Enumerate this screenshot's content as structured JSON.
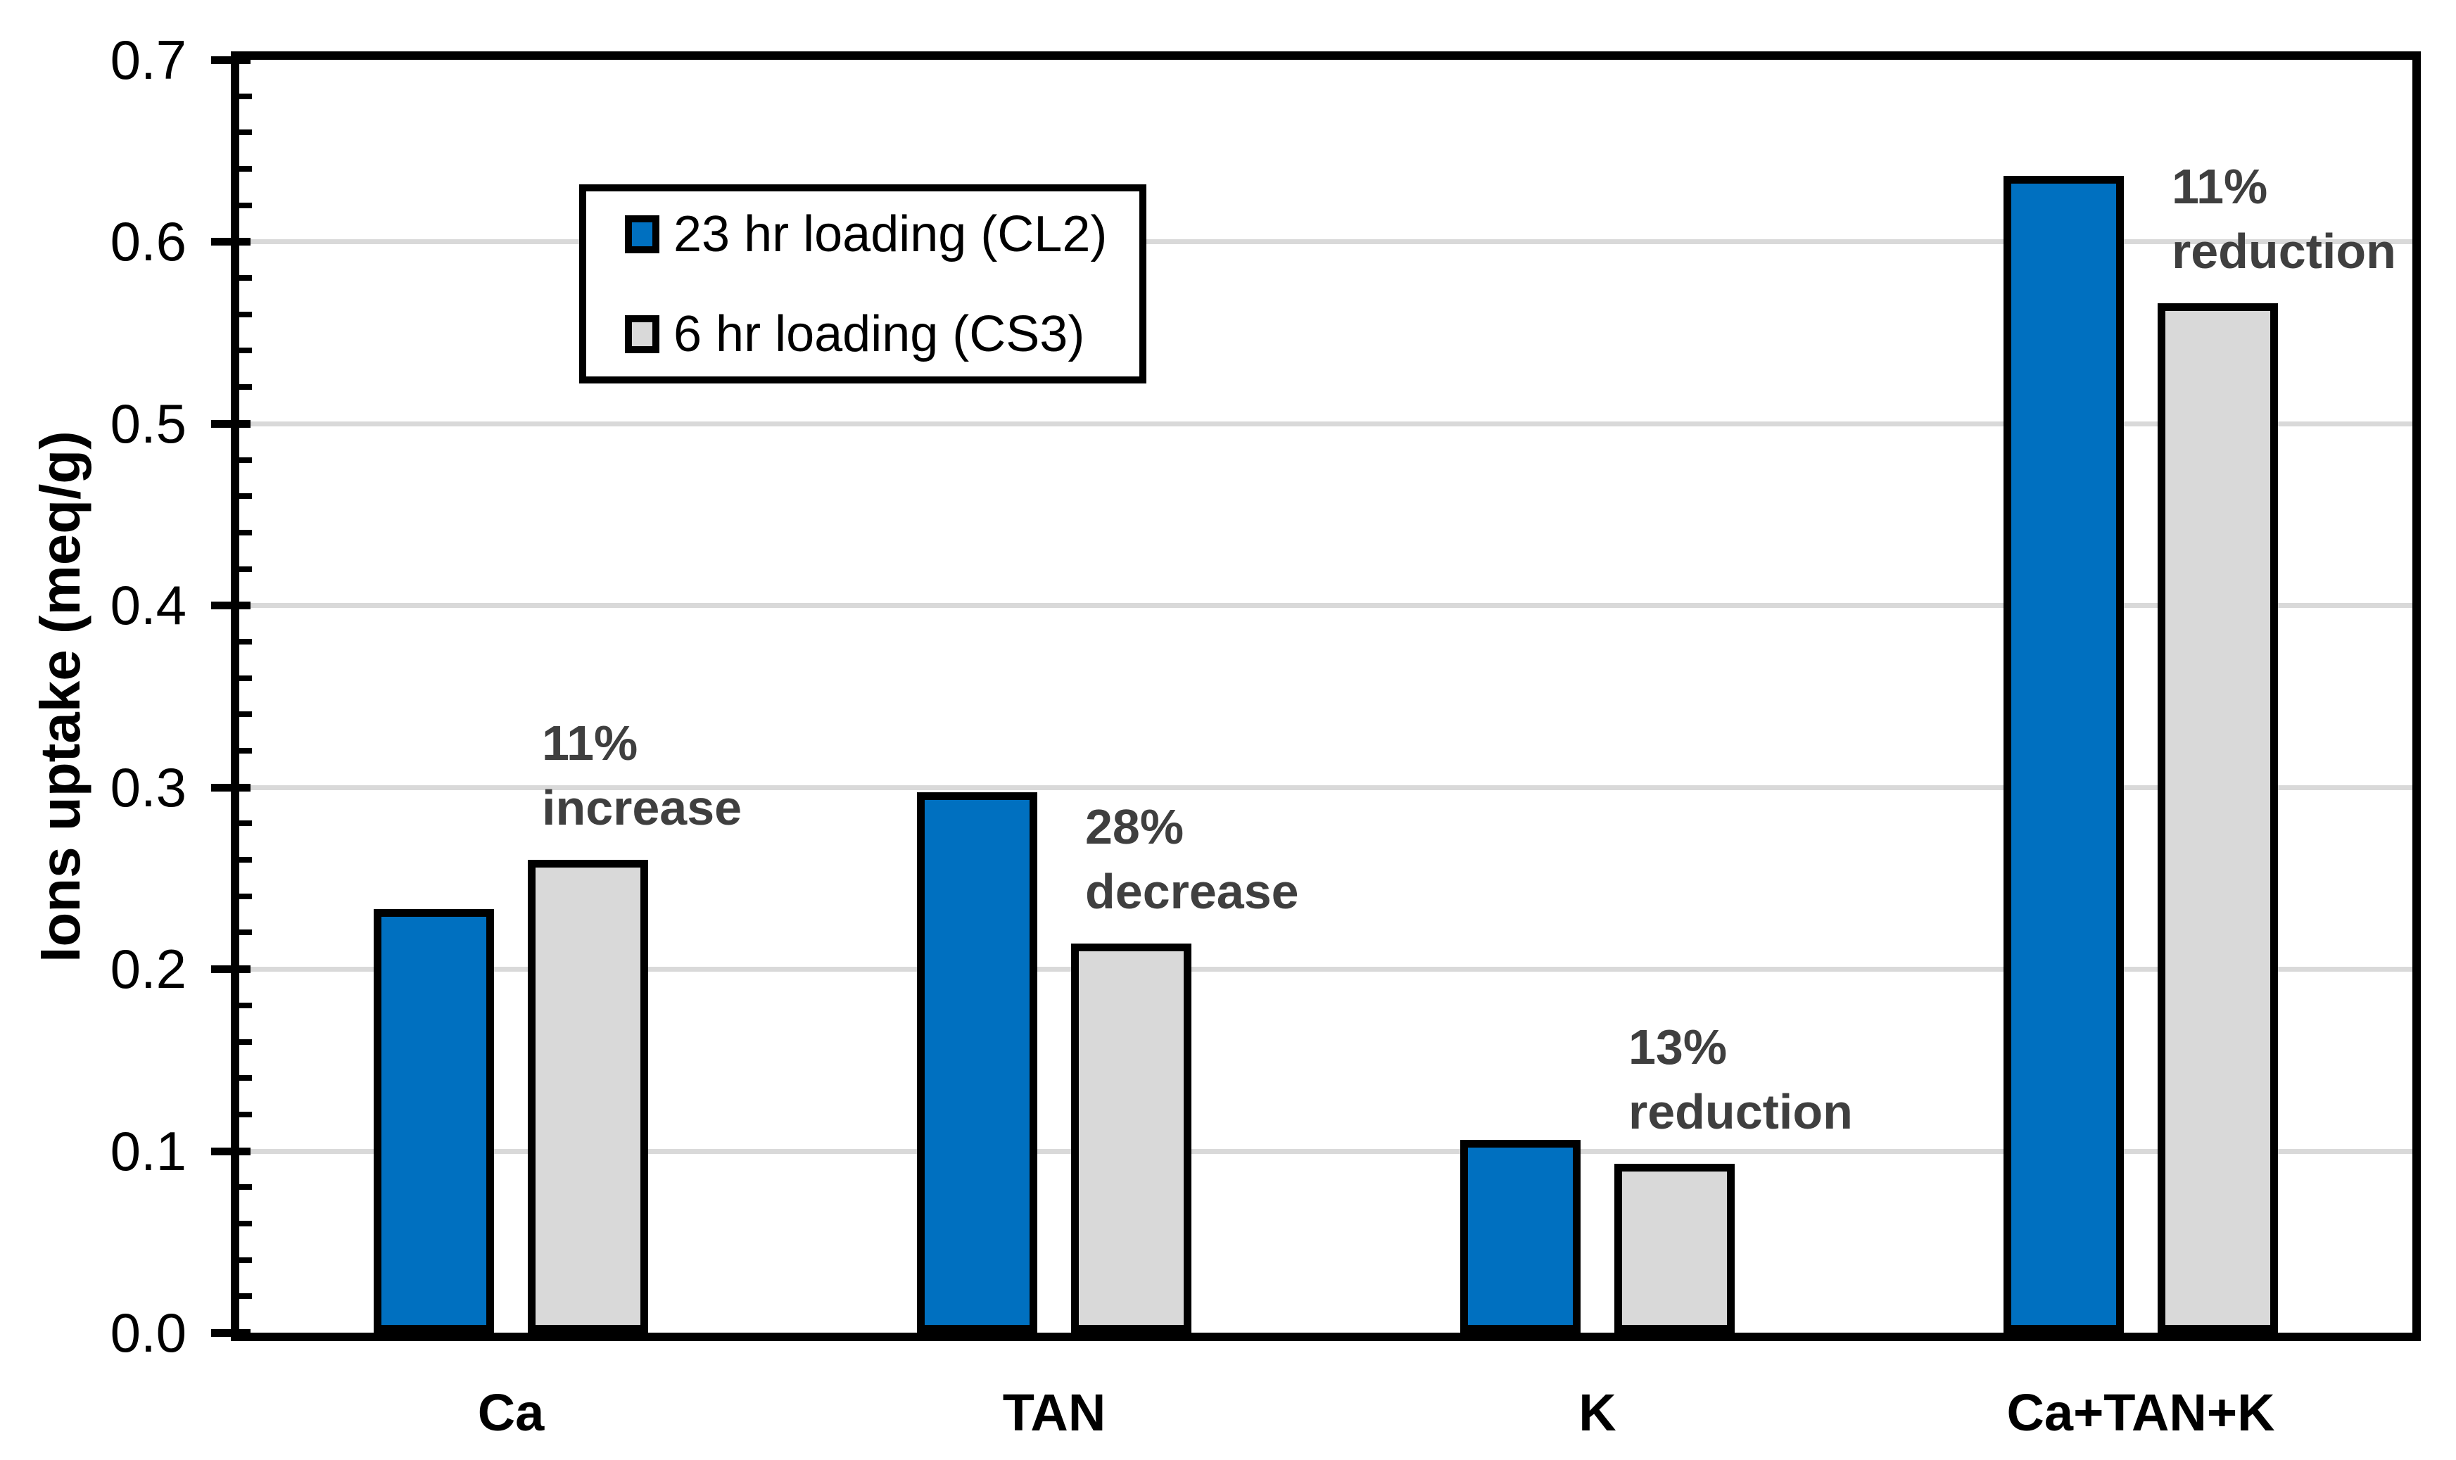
{
  "chart_data": {
    "type": "bar",
    "title": "",
    "categories": [
      "Ca",
      "TAN",
      "K",
      "Ca+TAN+K"
    ],
    "series": [
      {
        "name": "23 hr loading (CL2)",
        "color": "#0070C0",
        "values": [
          0.233,
          0.297,
          0.106,
          0.636
        ]
      },
      {
        "name": "6 hr loading (CS3)",
        "color": "#D9D9D9",
        "values": [
          0.26,
          0.214,
          0.093,
          0.566
        ]
      }
    ],
    "xlabel": "",
    "ylabel": "Ions uptake (meq/g)",
    "ylim": [
      0.0,
      0.7
    ],
    "ytick_step": 0.1,
    "yminor_tick_step": 0.02,
    "ytick_labels": [
      "0.0",
      "0.1",
      "0.2",
      "0.3",
      "0.4",
      "0.5",
      "0.6",
      "0.7"
    ],
    "grid": true,
    "legend_position": "upper-left-inside",
    "annotations": [
      {
        "category": "Ca",
        "lines": [
          "11%",
          "increase"
        ]
      },
      {
        "category": "TAN",
        "lines": [
          "28%",
          "decrease"
        ]
      },
      {
        "category": "K",
        "lines": [
          "13%",
          "reduction"
        ]
      },
      {
        "category": "Ca+TAN+K",
        "lines": [
          "11%",
          "reduction"
        ]
      }
    ],
    "colors": {
      "series1_fill": "#0070C0",
      "series2_fill": "#D9D9D9",
      "bar_border": "#000000",
      "gridline": "#D9D9D9",
      "axis": "#000000",
      "annotation_text": "#3F3F3F",
      "background": "#FFFFFF"
    }
  }
}
